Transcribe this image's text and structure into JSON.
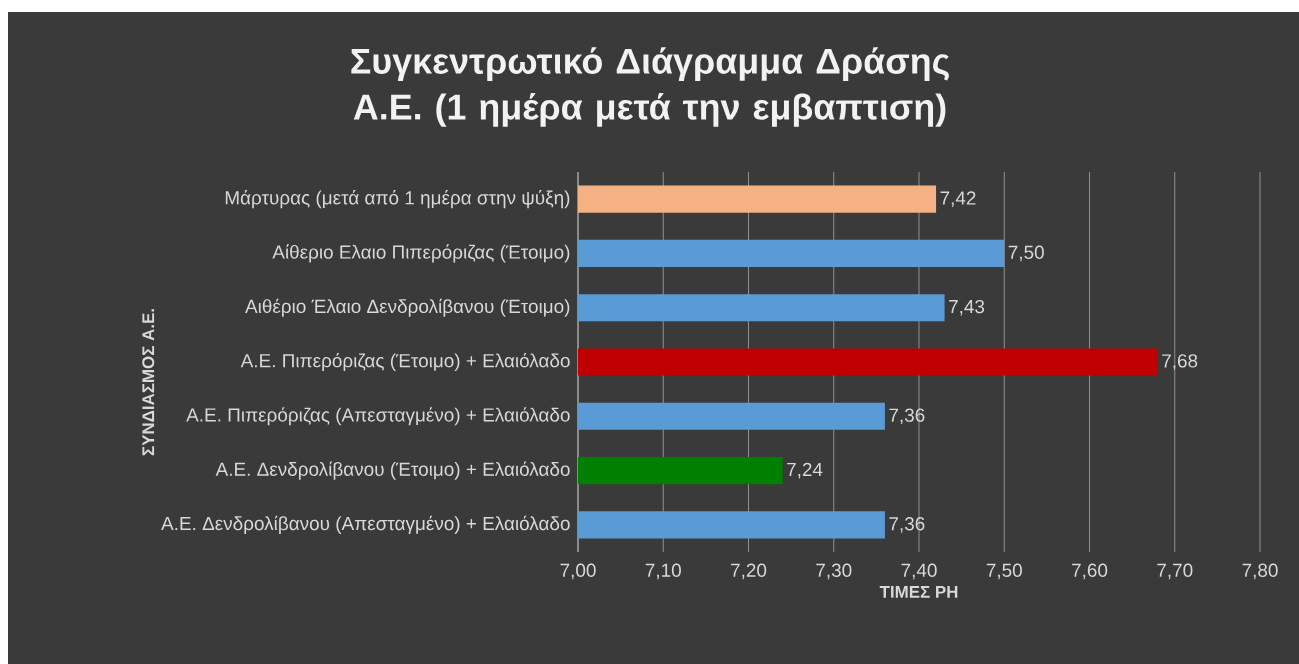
{
  "chart_data": {
    "type": "bar",
    "orientation": "horizontal",
    "title": "Συγκεντρωτικό Διάγραμμα Δράσης Α.Ε. (1 ημέρα μετά την εμβαπτιση)",
    "xlabel": "ΤΙΜΕΣ PH",
    "ylabel": "ΣΥΝΔΙΑΣΜΟΣ Α.Ε.",
    "categories": [
      "Μάρτυρας (μετά από 1 ημέρα στην ψύξη)",
      "Αίθεριο Ελαιο Πιπερόριζας (Έτοιμο)",
      "Αιθέριο Έλαιο Δενδρολίβανου (Έτοιμο)",
      "Α.Ε. Πιπερόριζας (Έτοιμο) +  Ελαιόλαδο",
      "Α.Ε. Πιπερόριζας (Απεσταγμένο) + Ελαιόλαδο",
      "Α.Ε. Δενδρολίβανου (Έτοιμο) + Ελαιόλαδο",
      "Α.Ε. Δενδρολίβανου (Απεσταγμένο) + Ελαιόλαδο"
    ],
    "values": [
      7.42,
      7.5,
      7.43,
      7.68,
      7.36,
      7.24,
      7.36
    ],
    "value_labels": [
      "7,42",
      "7,50",
      "7,43",
      "7,68",
      "7,36",
      "7,24",
      "7,36"
    ],
    "colors": [
      "#f4b183",
      "#5b9bd5",
      "#5b9bd5",
      "#c00000",
      "#5b9bd5",
      "#008000",
      "#5b9bd5"
    ],
    "xlim": [
      7.0,
      7.8
    ],
    "xticks": [
      {
        "value": 7.0,
        "label": "7,00"
      },
      {
        "value": 7.1,
        "label": "7,10"
      },
      {
        "value": 7.2,
        "label": "7,20"
      },
      {
        "value": 7.3,
        "label": "7,30"
      },
      {
        "value": 7.4,
        "label": "7,40"
      },
      {
        "value": 7.5,
        "label": "7,50"
      },
      {
        "value": 7.6,
        "label": "7,60"
      },
      {
        "value": 7.7,
        "label": "7,70"
      },
      {
        "value": 7.8,
        "label": "7,80"
      }
    ],
    "grid": "x"
  }
}
